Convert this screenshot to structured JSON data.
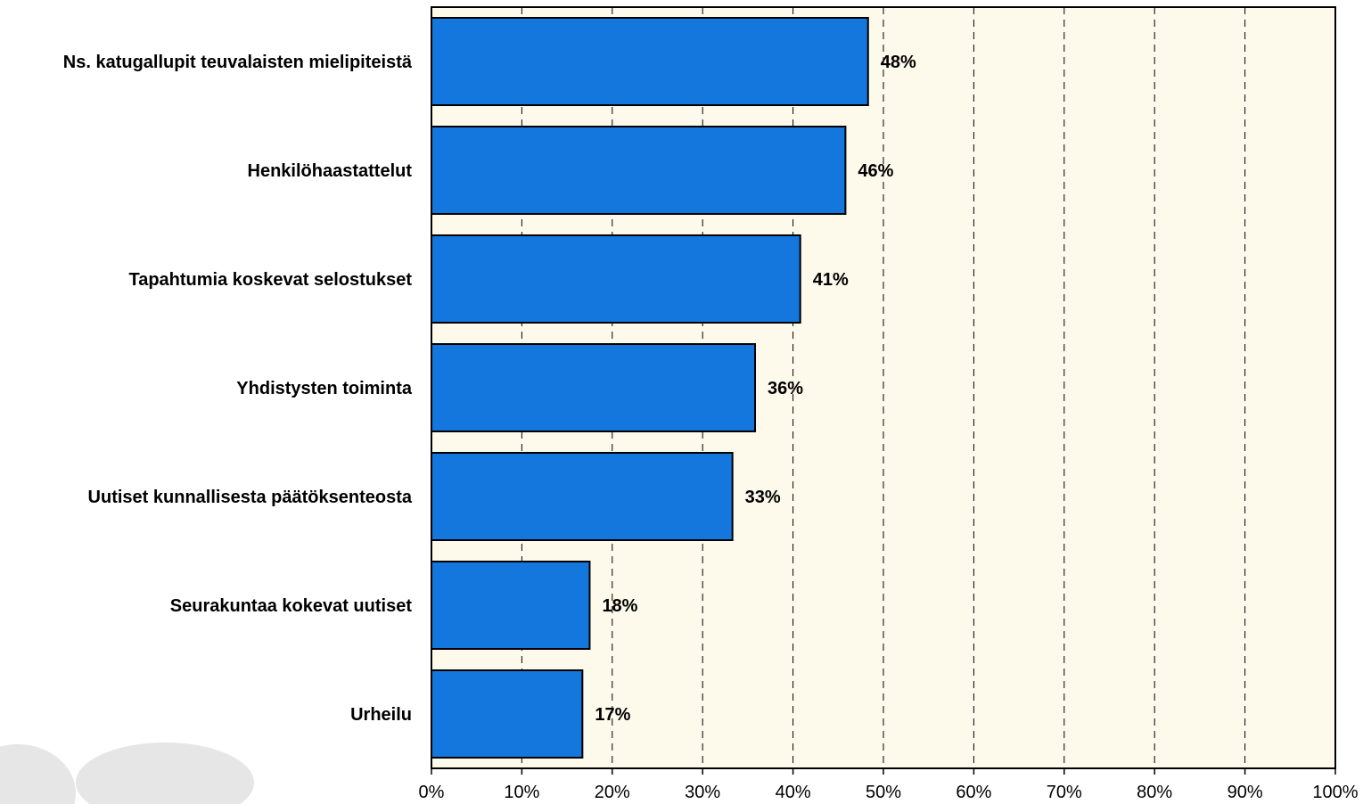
{
  "chart_data": {
    "type": "bar",
    "orientation": "horizontal",
    "categories": [
      "Ns. katugallupit teuvalaisten mielipiteistä",
      "Henkilöhaastattelut",
      "Tapahtumia koskevat selostukset",
      "Yhdistysten toiminta",
      "Uutiset kunnallisesta päätöksenteosta",
      "Seurakuntaa kokevat uutiset",
      "Urheilu"
    ],
    "values": [
      48.3,
      45.8,
      40.8,
      35.8,
      33.3,
      17.5,
      16.7
    ],
    "data_labels": [
      "48%",
      "46%",
      "41%",
      "36%",
      "33%",
      "18%",
      "17%"
    ],
    "x_ticks": [
      "0%",
      "10%",
      "20%",
      "30%",
      "40%",
      "50%",
      "60%",
      "70%",
      "80%",
      "90%",
      "100%"
    ],
    "xlim": [
      0,
      100
    ],
    "grid": "vertical dashed",
    "title": "",
    "xlabel": "",
    "ylabel": "",
    "colors": {
      "bar": "#1477DE",
      "plot_background": "#FDFAEC",
      "grid": "#000000",
      "decor": "#E6E6E6"
    }
  }
}
